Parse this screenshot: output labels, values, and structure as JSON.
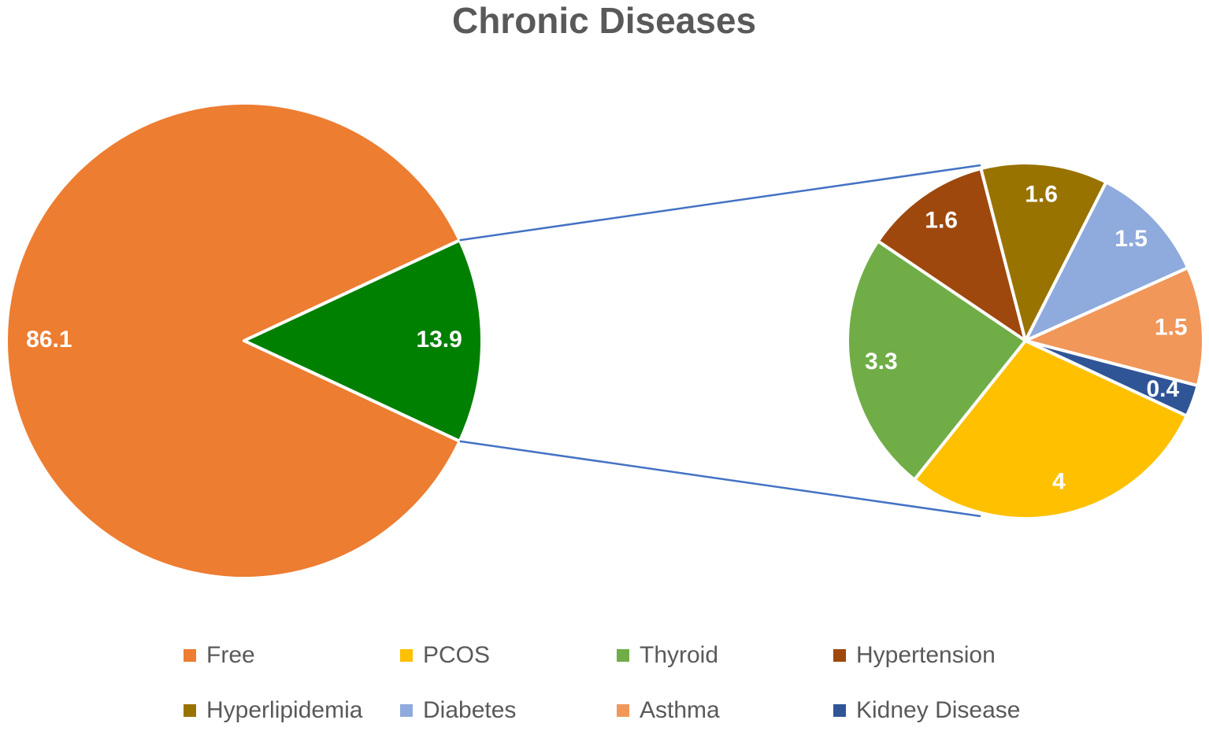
{
  "chart_data": {
    "type": "pie-of-pie",
    "title": "Chronic Diseases",
    "pies": [
      {
        "categories": [
          "Free",
          null
        ],
        "values": [
          86.1,
          13.9
        ],
        "colors": [
          "#ed7d31",
          "#008000"
        ]
      },
      {
        "categories": [
          "PCOS",
          "Thyroid",
          "Hypertension",
          "Hyperlipidemia",
          "Diabetes",
          "Asthma",
          "Kidney Disease"
        ],
        "values": [
          4,
          3.3,
          1.6,
          1.6,
          1.5,
          1.5,
          0.4
        ],
        "colors": [
          "#ffc000",
          "#70ad47",
          "#9e480e",
          "#997300",
          "#8faadc",
          "#f1975a",
          "#2f5597"
        ]
      }
    ],
    "connector_color": "#4472c4",
    "legend": "bottom"
  }
}
